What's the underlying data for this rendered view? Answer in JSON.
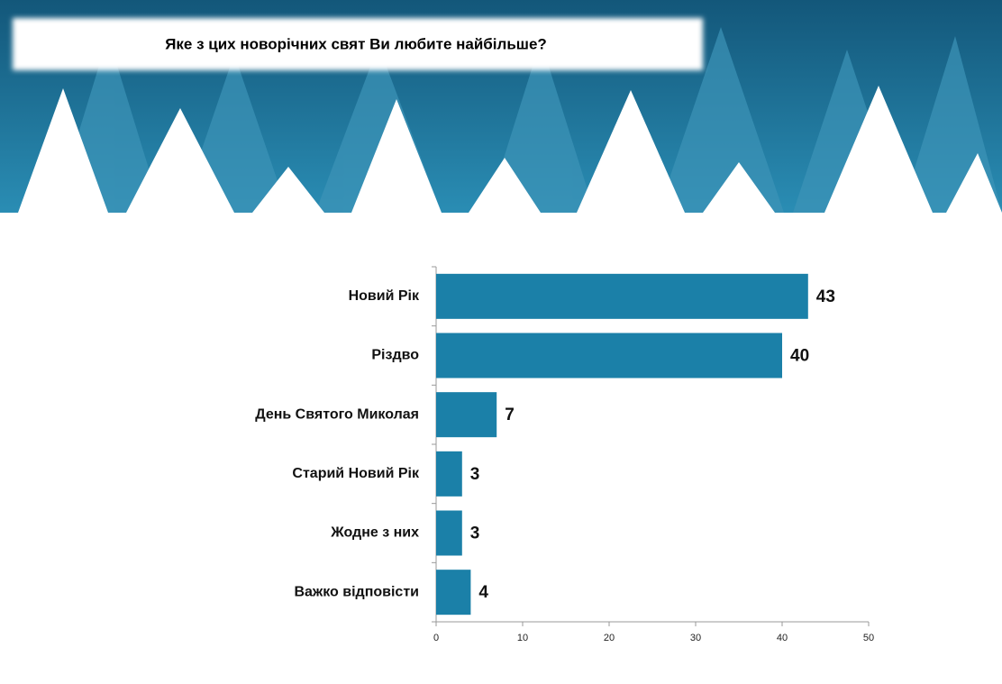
{
  "chart_data": {
    "type": "bar",
    "orientation": "horizontal",
    "title": "Яке з цих новорічних свят Ви любите найбільше?",
    "categories": [
      "Новий Рік",
      "Різдво",
      "День Святого Миколая",
      "Старий Новий Рік",
      "Жодне з них",
      "Важко відповісти"
    ],
    "values": [
      43,
      40,
      7,
      3,
      3,
      4
    ],
    "color": "#1b80a8",
    "xlim": [
      0,
      50
    ],
    "xticks": [
      0,
      10,
      20,
      30,
      40,
      50
    ]
  }
}
